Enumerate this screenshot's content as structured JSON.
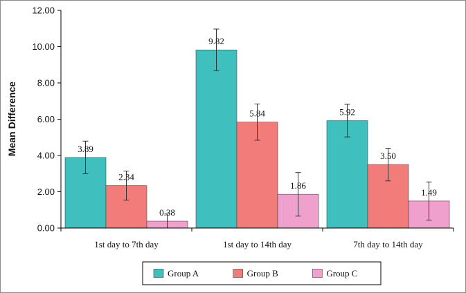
{
  "chart_data": {
    "type": "bar",
    "title": "",
    "xlabel": "",
    "ylabel": "Mean Difference",
    "ylim": [
      0,
      12
    ],
    "ytick_labels": [
      "0.00",
      "2.00",
      "4.00",
      "6.00",
      "8.00",
      "10.00",
      "12.00"
    ],
    "categories": [
      "1st day to 7th day",
      "1st day to 14th day",
      "7th day to 14th day"
    ],
    "series": [
      {
        "name": "Group A",
        "color": "#40bfbf",
        "values": [
          3.89,
          9.82,
          5.92
        ],
        "labels": [
          "3.89",
          "9.82",
          "5.92"
        ],
        "error": [
          0.9,
          1.15,
          0.9
        ]
      },
      {
        "name": "Group B",
        "color": "#f27c7a",
        "values": [
          2.34,
          5.84,
          3.5
        ],
        "labels": [
          "2.34",
          "5.84",
          "3.50"
        ],
        "error": [
          0.8,
          1.0,
          0.9
        ]
      },
      {
        "name": "Group C",
        "color": "#f0a0cc",
        "values": [
          0.38,
          1.86,
          1.49
        ],
        "labels": [
          "0.38",
          "1.86",
          "1.49"
        ],
        "error": [
          0.4,
          1.2,
          1.05
        ]
      }
    ],
    "grid": false,
    "legend_position": "bottom"
  }
}
